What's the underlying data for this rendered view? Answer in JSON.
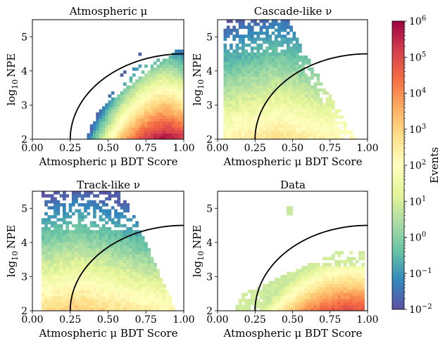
{
  "colorbar": {
    "label": "Events",
    "scale": "log",
    "range": [
      0.01,
      1000000
    ],
    "ticks": [
      {
        "base": "10",
        "exp": "6"
      },
      {
        "base": "10",
        "exp": "5"
      },
      {
        "base": "10",
        "exp": "4"
      },
      {
        "base": "10",
        "exp": "3"
      },
      {
        "base": "10",
        "exp": "2"
      },
      {
        "base": "10",
        "exp": "1"
      },
      {
        "base": "10",
        "exp": "0"
      },
      {
        "base": "10",
        "exp": "−1"
      },
      {
        "base": "10",
        "exp": "−2"
      }
    ],
    "colormap": "Spectral_r",
    "colors": [
      "#5e4fa2",
      "#3288bd",
      "#66c2a5",
      "#abdda4",
      "#e6f598",
      "#ffffbf",
      "#fee08b",
      "#fdae61",
      "#f46d43",
      "#d53e4f",
      "#9e0142"
    ]
  },
  "axis_text": {
    "xlabel": "Atmospheric μ BDT Score",
    "ylabel_prefix": "log",
    "ylabel_sub": "10",
    "ylabel_suffix": "NPE",
    "xticks": [
      "0.00",
      "0.25",
      "0.50",
      "0.75",
      "1.00"
    ],
    "yticks": [
      "2",
      "3",
      "4",
      "5"
    ]
  },
  "chart_data": [
    {
      "type": "heatmap",
      "title": "Atmospheric μ",
      "xlim": [
        0,
        1
      ],
      "ylim": [
        2,
        5.5
      ],
      "boundary_curve": "quarter ellipse from (0.25, 2) to (1.00, 4.5)",
      "occupancy": {
        "x_min": 0.28,
        "x_max": 0.99,
        "y_max": 4.55
      },
      "peak": {
        "x": 0.88,
        "y": 2.25,
        "log10_events": 5.8
      }
    },
    {
      "type": "heatmap",
      "title": "Cascade-like ν",
      "xlim": [
        0,
        1
      ],
      "ylim": [
        2,
        5.5
      ],
      "boundary_curve": "quarter ellipse from (0.25, 2) to (1.00, 4.5)",
      "occupancy": {
        "x_min": 0.04,
        "x_max": 0.92,
        "y_max": 5.5
      },
      "peak": {
        "x": 0.4,
        "y": 2.1,
        "log10_events": 2.8
      }
    },
    {
      "type": "heatmap",
      "title": "Track-like ν",
      "xlim": [
        0,
        1
      ],
      "ylim": [
        2,
        5.5
      ],
      "boundary_curve": "quarter ellipse from (0.25, 2) to (1.00, 4.5)",
      "occupancy": {
        "x_min": 0.06,
        "x_max": 0.95,
        "y_max": 5.5
      },
      "peak": {
        "x": 0.3,
        "y": 2.1,
        "log10_events": 3.2
      }
    },
    {
      "type": "heatmap",
      "title": "Data",
      "xlim": [
        0,
        1
      ],
      "ylim": [
        2,
        5.5
      ],
      "boundary_curve": "quarter ellipse from (0.25, 2) to (1.00, 4.5)",
      "occupancy": {
        "x_min": 0.12,
        "x_max": 0.98,
        "y_max": 5.05
      },
      "peak": {
        "x": 0.88,
        "y": 2.25,
        "log10_events": 5.0
      }
    }
  ]
}
